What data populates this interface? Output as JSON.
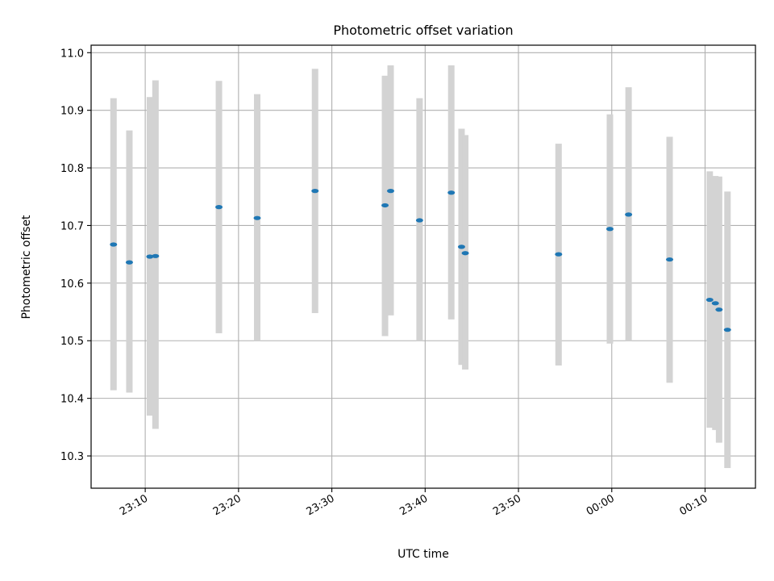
{
  "chart_data": {
    "type": "scatter",
    "title": "Photometric offset variation",
    "xlabel": "UTC time",
    "ylabel": "Photometric offset",
    "grid": true,
    "xlim": [
      1384.2,
      1455.4
    ],
    "ylim": [
      10.244,
      11.013
    ],
    "xticks": [
      {
        "value": 1390,
        "label": "23:10"
      },
      {
        "value": 1400,
        "label": "23:20"
      },
      {
        "value": 1410,
        "label": "23:30"
      },
      {
        "value": 1420,
        "label": "23:40"
      },
      {
        "value": 1430,
        "label": "23:50"
      },
      {
        "value": 1440,
        "label": "00:00"
      },
      {
        "value": 1450,
        "label": "00:10"
      }
    ],
    "yticks": [
      10.3,
      10.4,
      10.5,
      10.6,
      10.7,
      10.8,
      10.9,
      11.0
    ],
    "ytick_labels": [
      "10.3",
      "10.4",
      "10.5",
      "10.6",
      "10.7",
      "10.8",
      "10.9",
      "11.0"
    ],
    "series": [
      {
        "name": "offset",
        "color": "#1f77b4",
        "errorbar_color": "#d3d3d3",
        "points": [
          {
            "x": 1386.6,
            "y": 10.667,
            "ylow": 10.414,
            "yhigh": 10.921
          },
          {
            "x": 1388.3,
            "y": 10.636,
            "ylow": 10.41,
            "yhigh": 10.865
          },
          {
            "x": 1390.5,
            "y": 10.646,
            "ylow": 10.37,
            "yhigh": 10.923
          },
          {
            "x": 1391.1,
            "y": 10.647,
            "ylow": 10.347,
            "yhigh": 10.952
          },
          {
            "x": 1397.9,
            "y": 10.732,
            "ylow": 10.513,
            "yhigh": 10.951
          },
          {
            "x": 1402.0,
            "y": 10.713,
            "ylow": 10.5,
            "yhigh": 10.928
          },
          {
            "x": 1408.2,
            "y": 10.76,
            "ylow": 10.548,
            "yhigh": 10.972
          },
          {
            "x": 1415.7,
            "y": 10.735,
            "ylow": 10.508,
            "yhigh": 10.96
          },
          {
            "x": 1416.3,
            "y": 10.76,
            "ylow": 10.544,
            "yhigh": 10.978
          },
          {
            "x": 1419.4,
            "y": 10.709,
            "ylow": 10.5,
            "yhigh": 10.921
          },
          {
            "x": 1422.8,
            "y": 10.757,
            "ylow": 10.537,
            "yhigh": 10.978
          },
          {
            "x": 1423.9,
            "y": 10.663,
            "ylow": 10.458,
            "yhigh": 10.868
          },
          {
            "x": 1424.3,
            "y": 10.652,
            "ylow": 10.45,
            "yhigh": 10.857
          },
          {
            "x": 1434.3,
            "y": 10.65,
            "ylow": 10.457,
            "yhigh": 10.842
          },
          {
            "x": 1439.8,
            "y": 10.694,
            "ylow": 10.495,
            "yhigh": 10.893
          },
          {
            "x": 1441.8,
            "y": 10.719,
            "ylow": 10.5,
            "yhigh": 10.94
          },
          {
            "x": 1446.2,
            "y": 10.641,
            "ylow": 10.427,
            "yhigh": 10.854
          },
          {
            "x": 1450.5,
            "y": 10.571,
            "ylow": 10.349,
            "yhigh": 10.794
          },
          {
            "x": 1451.1,
            "y": 10.565,
            "ylow": 10.345,
            "yhigh": 10.786
          },
          {
            "x": 1451.5,
            "y": 10.554,
            "ylow": 10.323,
            "yhigh": 10.785
          },
          {
            "x": 1452.4,
            "y": 10.519,
            "ylow": 10.279,
            "yhigh": 10.759
          }
        ]
      }
    ]
  }
}
